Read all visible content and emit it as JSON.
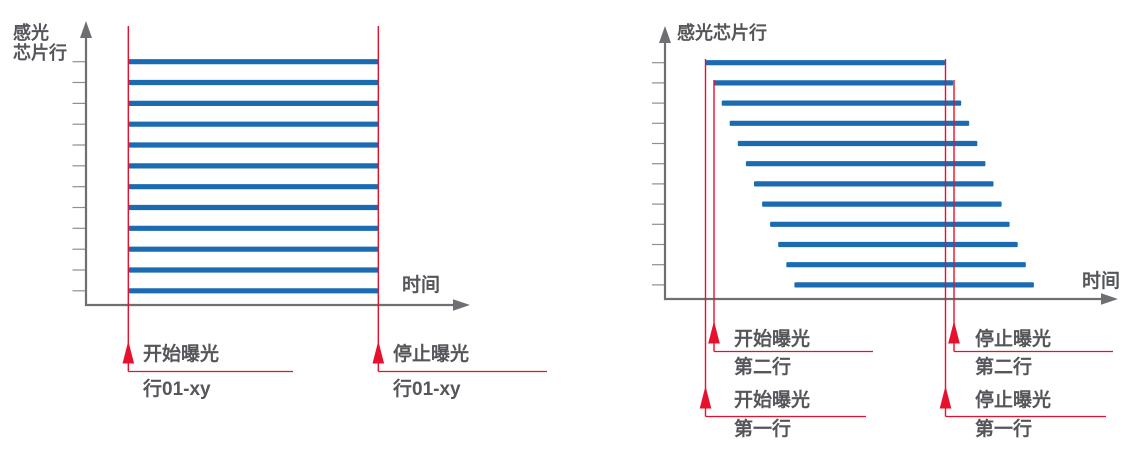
{
  "colors": {
    "bar_blue": "#1a6bb2",
    "line_red": "#e8112d",
    "axis_gray": "#6e6f72",
    "tick_gray": "#8d8f92",
    "text_gray": "#55565a"
  },
  "left_chart": {
    "y_label_line1": "感光",
    "y_label_line2": "芯片行",
    "x_label": "时间",
    "row_count": 12,
    "start_label": "开始曝光",
    "start_sub": "行01-xy",
    "stop_label": "停止曝光",
    "stop_sub": "行01-xy"
  },
  "right_chart": {
    "y_label": "感光芯片行",
    "x_label": "时间",
    "row_count": 12,
    "start_row2_label": "开始曝光",
    "start_row2_sub": "第二行",
    "stop_row2_label": "停止曝光",
    "stop_row2_sub": "第二行",
    "start_row1_label": "开始曝光",
    "start_row1_sub": "第一行",
    "stop_row1_label": "停止曝光",
    "stop_row1_sub": "第一行"
  },
  "chart_data": [
    {
      "type": "bar",
      "variant": "timing-diagram-global-shutter",
      "ylabel": "感光芯片行",
      "xlabel": "时间",
      "rows": 12,
      "series": [
        {
          "name": "exposure-window",
          "row_starts": [
            0,
            0,
            0,
            0,
            0,
            0,
            0,
            0,
            0,
            0,
            0,
            0
          ],
          "row_stops": [
            1,
            1,
            1,
            1,
            1,
            1,
            1,
            1,
            1,
            1,
            1,
            1
          ]
        }
      ],
      "annotations": [
        "开始曝光 行01-xy",
        "停止曝光 行01-xy"
      ],
      "legend_position": "none",
      "grid": false
    },
    {
      "type": "bar",
      "variant": "timing-diagram-rolling-shutter",
      "ylabel": "感光芯片行",
      "xlabel": "时间",
      "rows": 12,
      "series": [
        {
          "name": "exposure-window",
          "row_starts": [
            0,
            0.034,
            0.067,
            0.101,
            0.135,
            0.169,
            0.202,
            0.236,
            0.27,
            0.304,
            0.337,
            0.371
          ],
          "row_stops": [
            1,
            1.034,
            1.067,
            1.101,
            1.135,
            1.169,
            1.202,
            1.236,
            1.27,
            1.304,
            1.337,
            1.371
          ]
        }
      ],
      "annotations": [
        "开始曝光 第二行",
        "停止曝光 第二行",
        "开始曝光 第一行",
        "停止曝光 第一行"
      ],
      "legend_position": "none",
      "grid": false
    }
  ]
}
